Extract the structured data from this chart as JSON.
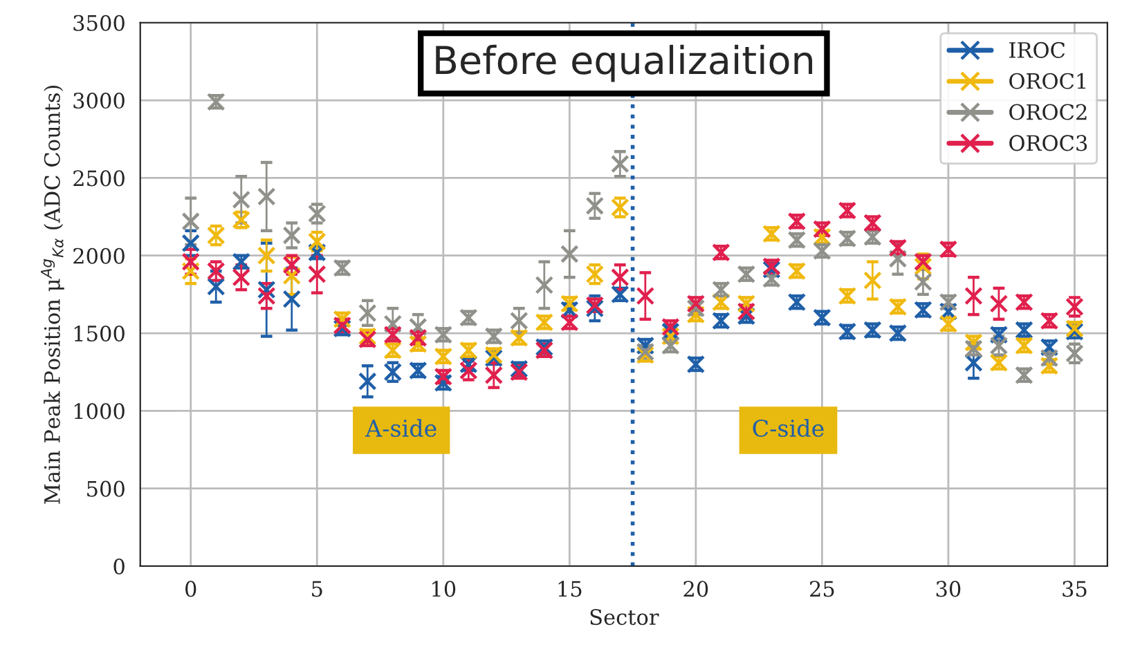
{
  "chart_data": {
    "type": "scatter",
    "title": "Before equalizaition",
    "xlabel": "Sector",
    "ylabel": "Main Peak Position μ$^{Ag}$$_{Kα}$ (ADC Counts)",
    "x": [
      0,
      1,
      2,
      3,
      4,
      5,
      6,
      7,
      8,
      9,
      10,
      11,
      12,
      13,
      14,
      15,
      16,
      17,
      18,
      19,
      20,
      21,
      22,
      23,
      24,
      25,
      26,
      27,
      28,
      29,
      30,
      31,
      32,
      33,
      34,
      35
    ],
    "series": [
      {
        "name": "IROC",
        "color": "#1f5fa8",
        "values": [
          2080,
          1800,
          1960,
          1780,
          1720,
          2020,
          1530,
          1190,
          1250,
          1260,
          1180,
          1300,
          1340,
          1270,
          1410,
          1650,
          1660,
          1750,
          1420,
          1510,
          1300,
          1580,
          1610,
          1910,
          1700,
          1600,
          1510,
          1520,
          1500,
          1650,
          1640,
          1310,
          1490,
          1520,
          1410,
          1510
        ],
        "errors": [
          80,
          100,
          40,
          300,
          200,
          40,
          40,
          100,
          60,
          40,
          40,
          40,
          40,
          40,
          40,
          40,
          80,
          40,
          40,
          40,
          40,
          40,
          40,
          40,
          40,
          40,
          40,
          40,
          40,
          40,
          40,
          100,
          40,
          40,
          40,
          40
        ]
      },
      {
        "name": "OROC1",
        "color": "#f0b90f",
        "values": [
          1900,
          2130,
          2230,
          2000,
          1870,
          2090,
          1590,
          1480,
          1390,
          1430,
          1350,
          1390,
          1360,
          1470,
          1570,
          1690,
          1880,
          2310,
          1360,
          1480,
          1620,
          1700,
          1690,
          2140,
          1900,
          2120,
          1740,
          1840,
          1670,
          1930,
          1560,
          1440,
          1310,
          1420,
          1290,
          1530
        ],
        "errors": [
          80,
          60,
          50,
          100,
          120,
          60,
          40,
          40,
          40,
          40,
          40,
          40,
          40,
          40,
          40,
          40,
          60,
          60,
          40,
          40,
          40,
          40,
          40,
          40,
          40,
          40,
          40,
          120,
          40,
          80,
          40,
          40,
          40,
          40,
          40,
          40
        ]
      },
      {
        "name": "OROC2",
        "color": "#8f918a",
        "values": [
          2220,
          2990,
          2360,
          2380,
          2130,
          2270,
          1920,
          1630,
          1560,
          1540,
          1490,
          1600,
          1480,
          1580,
          1810,
          2010,
          2320,
          2590,
          1380,
          1420,
          1660,
          1780,
          1880,
          1850,
          2100,
          2030,
          2110,
          2120,
          1980,
          1830,
          1700,
          1400,
          1420,
          1230,
          1340,
          1370
        ],
        "errors": [
          150,
          40,
          150,
          220,
          80,
          60,
          40,
          80,
          100,
          80,
          40,
          40,
          40,
          80,
          150,
          150,
          80,
          80,
          40,
          40,
          40,
          40,
          40,
          40,
          40,
          40,
          40,
          40,
          100,
          80,
          40,
          40,
          60,
          40,
          40,
          60
        ]
      },
      {
        "name": "OROC3",
        "color": "#e0204d",
        "values": [
          1960,
          1900,
          1860,
          1740,
          1940,
          1880,
          1550,
          1460,
          1490,
          1470,
          1220,
          1260,
          1230,
          1250,
          1390,
          1570,
          1680,
          1860,
          1740,
          1540,
          1690,
          2020,
          1640,
          1930,
          2220,
          2170,
          2290,
          2210,
          2050,
          1960,
          2040,
          1740,
          1690,
          1700,
          1580,
          1670
        ],
        "errors": [
          80,
          60,
          80,
          80,
          60,
          120,
          40,
          40,
          40,
          40,
          40,
          60,
          80,
          40,
          40,
          40,
          40,
          80,
          150,
          40,
          40,
          40,
          40,
          40,
          40,
          40,
          40,
          40,
          40,
          40,
          40,
          120,
          100,
          40,
          40,
          60
        ]
      }
    ],
    "xlim": [
      -2,
      36.3
    ],
    "ylim": [
      0,
      3500
    ],
    "xticks": [
      0,
      5,
      10,
      15,
      20,
      25,
      30,
      35
    ],
    "yticks": [
      0,
      500,
      1000,
      1500,
      2000,
      2500,
      3000,
      3500
    ],
    "ref_lines": [
      {
        "axis": "x",
        "value": 17.5,
        "color": "#1f5fa8",
        "line_style": "dotted"
      }
    ],
    "annotations": [
      "A-side",
      "C-side"
    ],
    "grid": true,
    "legend": "top right",
    "marker": "cross"
  }
}
